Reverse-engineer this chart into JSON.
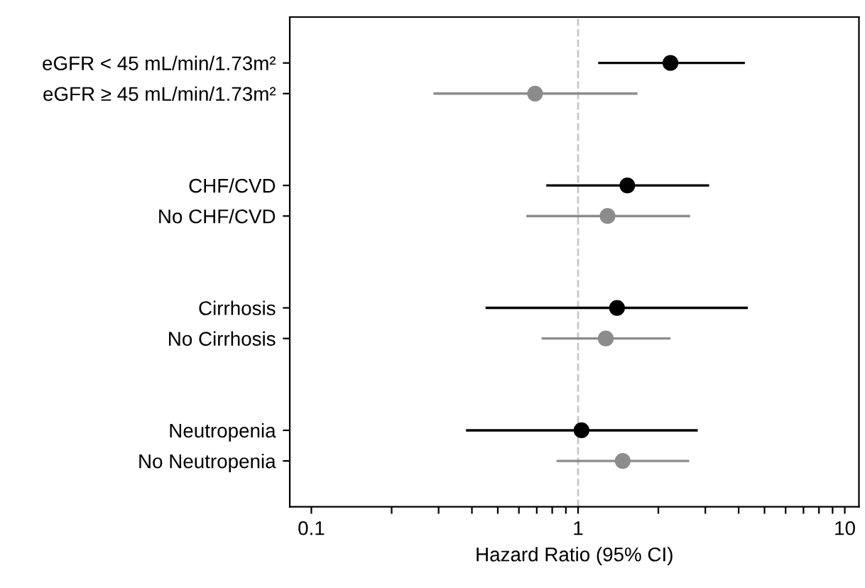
{
  "chart_data": {
    "type": "scatter",
    "orientation": "horizontal",
    "xlabel": "Hazard Ratio (95% CI)",
    "categories": [
      "eGFR < 45 mL/min/1.73m²",
      "eGFR ≥ 45 mL/min/1.73m²",
      null,
      null,
      "CHF/CVD",
      "No CHF/CVD",
      null,
      null,
      "Cirrhosis",
      "No Cirrhosis",
      null,
      null,
      "Neutropenia",
      "No Neutropenia"
    ],
    "series": [
      {
        "color": "#000000",
        "values": [
          2.22,
          null,
          null,
          null,
          1.53,
          null,
          null,
          null,
          1.4,
          null,
          null,
          null,
          1.03,
          null
        ],
        "errors": [
          [
            1.19,
            4.22
          ],
          null,
          null,
          null,
          [
            0.76,
            3.1
          ],
          null,
          null,
          null,
          [
            0.45,
            4.33
          ],
          null,
          null,
          null,
          [
            0.38,
            2.81
          ],
          null
        ]
      },
      {
        "color": "#8c8c8c",
        "values": [
          null,
          0.69,
          null,
          null,
          null,
          1.29,
          null,
          null,
          null,
          1.27,
          null,
          null,
          null,
          1.47
        ],
        "errors": [
          null,
          [
            0.287,
            1.67
          ],
          null,
          null,
          null,
          [
            0.64,
            2.63
          ],
          null,
          null,
          null,
          [
            0.73,
            2.22
          ],
          null,
          null,
          null,
          [
            0.83,
            2.61
          ]
        ]
      }
    ],
    "log": "x",
    "xlim": [
      0.083,
      11.3
    ],
    "xticks": [
      0.1,
      {
        "value": 0.2,
        "label": null
      },
      {
        "value": 0.3,
        "label": null
      },
      {
        "value": 0.4,
        "label": null
      },
      {
        "value": 0.5,
        "label": null
      },
      {
        "value": 0.6,
        "label": null
      },
      {
        "value": 0.7,
        "label": null
      },
      {
        "value": 0.8,
        "label": null
      },
      {
        "value": 0.9,
        "label": null
      },
      1,
      {
        "value": 2,
        "label": null
      },
      {
        "value": 3,
        "label": null
      },
      {
        "value": 4,
        "label": null
      },
      {
        "value": 5,
        "label": null
      },
      {
        "value": 6,
        "label": null
      },
      {
        "value": 7,
        "label": null
      },
      {
        "value": 8,
        "label": null
      },
      {
        "value": 9,
        "label": null
      },
      10
    ],
    "ref_lines": [
      {
        "axis": "x",
        "value": 1,
        "color": "#c8c8c8",
        "line_style": "dashed"
      }
    ],
    "marker": "circle",
    "grid": false,
    "legend": false
  }
}
